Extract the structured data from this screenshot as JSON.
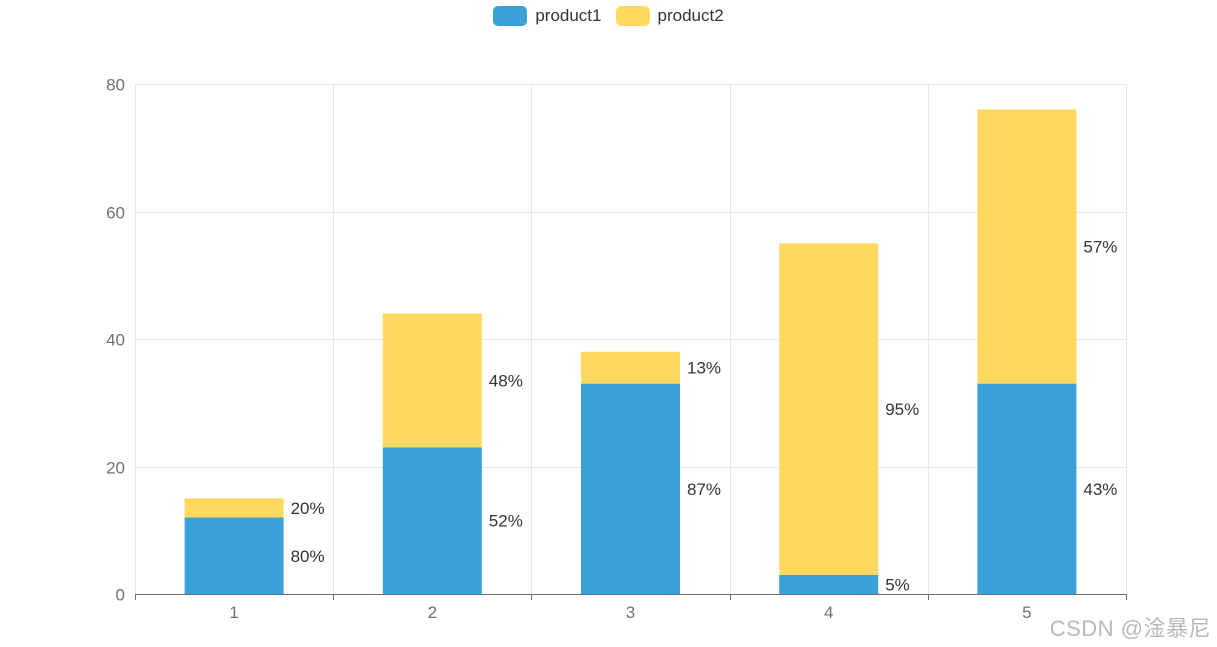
{
  "chart_data": {
    "type": "bar",
    "stacked": true,
    "categories": [
      "1",
      "2",
      "3",
      "4",
      "5"
    ],
    "series": [
      {
        "name": "product1",
        "color": "#3AA1D8",
        "values": [
          12,
          23,
          33,
          3,
          33
        ],
        "labels": [
          "80%",
          "52%",
          "87%",
          "5%",
          "43%"
        ]
      },
      {
        "name": "product2",
        "color": "#FFD85E",
        "values": [
          3,
          21,
          5,
          52,
          43
        ],
        "labels": [
          "20%",
          "48%",
          "13%",
          "95%",
          "57%"
        ]
      }
    ],
    "ylim": [
      0,
      80
    ],
    "yticks": [
      "0",
      "20",
      "40",
      "60",
      "80"
    ],
    "grid": true,
    "legend_position": "top-center"
  },
  "watermark": "CSDN @淦暴尼"
}
